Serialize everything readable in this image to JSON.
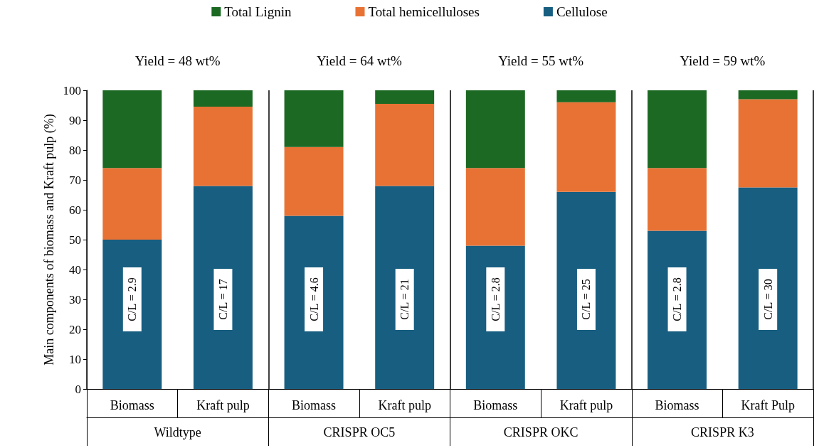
{
  "chart_data": {
    "type": "bar",
    "stacked": true,
    "ylabel": "Main components of biomass and Kraft pulp (%)",
    "categories": [
      "Biomass",
      "Kraft pulp",
      "Biomass",
      "Kraft pulp",
      "Biomass",
      "Kraft pulp",
      "Biomass",
      "Kraft Pulp"
    ],
    "series": [
      {
        "name": "Cellulose",
        "color": "#175e80",
        "values": [
          50,
          68,
          58,
          68,
          48,
          66,
          53,
          67.5
        ]
      },
      {
        "name": "Total hemicelluloses",
        "color": "#e87234",
        "values": [
          24,
          26.5,
          23,
          27.5,
          26,
          30,
          21,
          29.5
        ]
      },
      {
        "name": "Total Lignin",
        "color": "#1b6922",
        "values": [
          26,
          5.5,
          19,
          4.5,
          26,
          4,
          26,
          3
        ]
      }
    ],
    "ylim": [
      0,
      100
    ],
    "yticks": [
      0,
      10,
      20,
      30,
      40,
      50,
      60,
      70,
      80,
      90,
      100
    ],
    "grid": false,
    "legend": "top",
    "annotations": [
      "Yield = 48 wt%",
      "Yield = 64 wt%",
      "Yield = 55 wt%",
      "Yield = 59 wt%",
      "C/L = 2.9",
      "C/L = 17",
      "C/L = 4.6",
      "C/L = 21",
      "C/L = 2.8",
      "C/L = 25",
      "C/L = 2.8",
      "C/L = 30",
      "Wildtype",
      "CRISPR OC5",
      "CRISPR OKC",
      "CRISPR K3"
    ]
  }
}
